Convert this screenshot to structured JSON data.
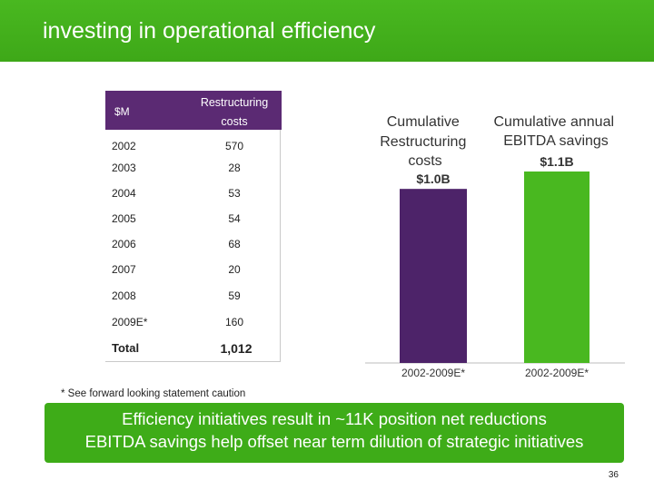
{
  "header": {
    "title": "investing in operational efficiency"
  },
  "table": {
    "col_unit": "$M",
    "col_costs": [
      "Restructuring",
      "costs"
    ],
    "rows": [
      {
        "year": "2002",
        "value": "570"
      },
      {
        "year": "2003",
        "value": "28"
      },
      {
        "year": "2004",
        "value": "53"
      },
      {
        "year": "2005",
        "value": "54"
      },
      {
        "year": "2006",
        "value": "68"
      },
      {
        "year": "2007",
        "value": "20"
      },
      {
        "year": "2008",
        "value": "59"
      },
      {
        "year": "2009E*",
        "value": "160"
      },
      {
        "year": "Total",
        "value": "1,012"
      }
    ]
  },
  "chart_data": {
    "type": "bar",
    "categories": [
      "2002-2009E*",
      "2002-2009E*"
    ],
    "series": [
      {
        "name": "Cumulative Restructuring costs",
        "label_lines": [
          "Cumulative",
          "Restructuring",
          "costs"
        ],
        "value": 1.0,
        "value_label": "$1.0B",
        "color": "#4d2369"
      },
      {
        "name": "Cumulative annual EBITDA savings",
        "label_lines": [
          "Cumulative annual",
          "EBITDA savings"
        ],
        "value": 1.1,
        "value_label": "$1.1B",
        "color": "#49b820"
      }
    ],
    "ylim": [
      0,
      1.1
    ],
    "unit": "$B"
  },
  "footnote": "* See forward looking statement caution",
  "banner": {
    "line1": "Efficiency initiatives result in ~11K position net reductions",
    "line2": "EBITDA savings help offset near term dilution of strategic initiatives"
  },
  "page_number": "36",
  "colors": {
    "brand_green": "#49b820",
    "purple": "#5b2a73"
  }
}
